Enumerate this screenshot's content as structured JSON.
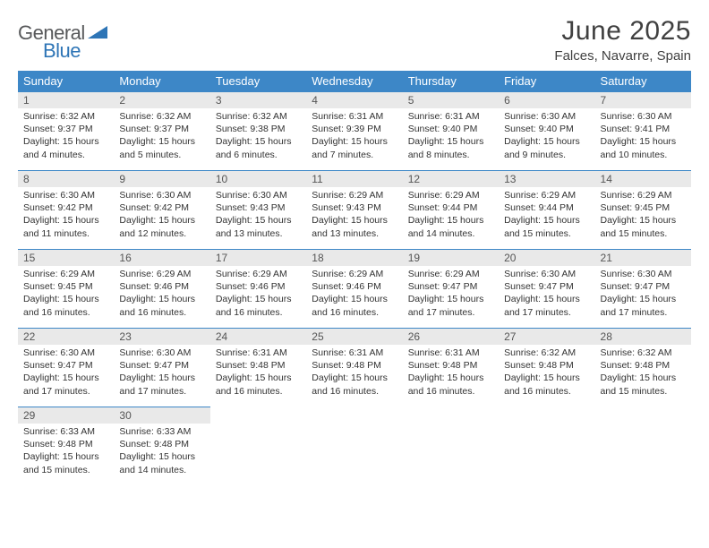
{
  "logo": {
    "line1": "General",
    "line2": "Blue",
    "general_color": "#58595b",
    "blue_color": "#2e75b6",
    "triangle_color": "#2e75b6"
  },
  "title": "June 2025",
  "location": "Falces, Navarre, Spain",
  "header_row_color": "#3d87c7",
  "daynum_bg": "#e9e9e9",
  "weekdays": [
    "Sunday",
    "Monday",
    "Tuesday",
    "Wednesday",
    "Thursday",
    "Friday",
    "Saturday"
  ],
  "weeks": [
    [
      {
        "n": "1",
        "sunrise": "6:32 AM",
        "sunset": "9:37 PM",
        "daylight": "15 hours and 4 minutes."
      },
      {
        "n": "2",
        "sunrise": "6:32 AM",
        "sunset": "9:37 PM",
        "daylight": "15 hours and 5 minutes."
      },
      {
        "n": "3",
        "sunrise": "6:32 AM",
        "sunset": "9:38 PM",
        "daylight": "15 hours and 6 minutes."
      },
      {
        "n": "4",
        "sunrise": "6:31 AM",
        "sunset": "9:39 PM",
        "daylight": "15 hours and 7 minutes."
      },
      {
        "n": "5",
        "sunrise": "6:31 AM",
        "sunset": "9:40 PM",
        "daylight": "15 hours and 8 minutes."
      },
      {
        "n": "6",
        "sunrise": "6:30 AM",
        "sunset": "9:40 PM",
        "daylight": "15 hours and 9 minutes."
      },
      {
        "n": "7",
        "sunrise": "6:30 AM",
        "sunset": "9:41 PM",
        "daylight": "15 hours and 10 minutes."
      }
    ],
    [
      {
        "n": "8",
        "sunrise": "6:30 AM",
        "sunset": "9:42 PM",
        "daylight": "15 hours and 11 minutes."
      },
      {
        "n": "9",
        "sunrise": "6:30 AM",
        "sunset": "9:42 PM",
        "daylight": "15 hours and 12 minutes."
      },
      {
        "n": "10",
        "sunrise": "6:30 AM",
        "sunset": "9:43 PM",
        "daylight": "15 hours and 13 minutes."
      },
      {
        "n": "11",
        "sunrise": "6:29 AM",
        "sunset": "9:43 PM",
        "daylight": "15 hours and 13 minutes."
      },
      {
        "n": "12",
        "sunrise": "6:29 AM",
        "sunset": "9:44 PM",
        "daylight": "15 hours and 14 minutes."
      },
      {
        "n": "13",
        "sunrise": "6:29 AM",
        "sunset": "9:44 PM",
        "daylight": "15 hours and 15 minutes."
      },
      {
        "n": "14",
        "sunrise": "6:29 AM",
        "sunset": "9:45 PM",
        "daylight": "15 hours and 15 minutes."
      }
    ],
    [
      {
        "n": "15",
        "sunrise": "6:29 AM",
        "sunset": "9:45 PM",
        "daylight": "15 hours and 16 minutes."
      },
      {
        "n": "16",
        "sunrise": "6:29 AM",
        "sunset": "9:46 PM",
        "daylight": "15 hours and 16 minutes."
      },
      {
        "n": "17",
        "sunrise": "6:29 AM",
        "sunset": "9:46 PM",
        "daylight": "15 hours and 16 minutes."
      },
      {
        "n": "18",
        "sunrise": "6:29 AM",
        "sunset": "9:46 PM",
        "daylight": "15 hours and 16 minutes."
      },
      {
        "n": "19",
        "sunrise": "6:29 AM",
        "sunset": "9:47 PM",
        "daylight": "15 hours and 17 minutes."
      },
      {
        "n": "20",
        "sunrise": "6:30 AM",
        "sunset": "9:47 PM",
        "daylight": "15 hours and 17 minutes."
      },
      {
        "n": "21",
        "sunrise": "6:30 AM",
        "sunset": "9:47 PM",
        "daylight": "15 hours and 17 minutes."
      }
    ],
    [
      {
        "n": "22",
        "sunrise": "6:30 AM",
        "sunset": "9:47 PM",
        "daylight": "15 hours and 17 minutes."
      },
      {
        "n": "23",
        "sunrise": "6:30 AM",
        "sunset": "9:47 PM",
        "daylight": "15 hours and 17 minutes."
      },
      {
        "n": "24",
        "sunrise": "6:31 AM",
        "sunset": "9:48 PM",
        "daylight": "15 hours and 16 minutes."
      },
      {
        "n": "25",
        "sunrise": "6:31 AM",
        "sunset": "9:48 PM",
        "daylight": "15 hours and 16 minutes."
      },
      {
        "n": "26",
        "sunrise": "6:31 AM",
        "sunset": "9:48 PM",
        "daylight": "15 hours and 16 minutes."
      },
      {
        "n": "27",
        "sunrise": "6:32 AM",
        "sunset": "9:48 PM",
        "daylight": "15 hours and 16 minutes."
      },
      {
        "n": "28",
        "sunrise": "6:32 AM",
        "sunset": "9:48 PM",
        "daylight": "15 hours and 15 minutes."
      }
    ],
    [
      {
        "n": "29",
        "sunrise": "6:33 AM",
        "sunset": "9:48 PM",
        "daylight": "15 hours and 15 minutes."
      },
      {
        "n": "30",
        "sunrise": "6:33 AM",
        "sunset": "9:48 PM",
        "daylight": "15 hours and 14 minutes."
      },
      null,
      null,
      null,
      null,
      null
    ]
  ],
  "labels": {
    "sunrise": "Sunrise:",
    "sunset": "Sunset:",
    "daylight": "Daylight:"
  }
}
